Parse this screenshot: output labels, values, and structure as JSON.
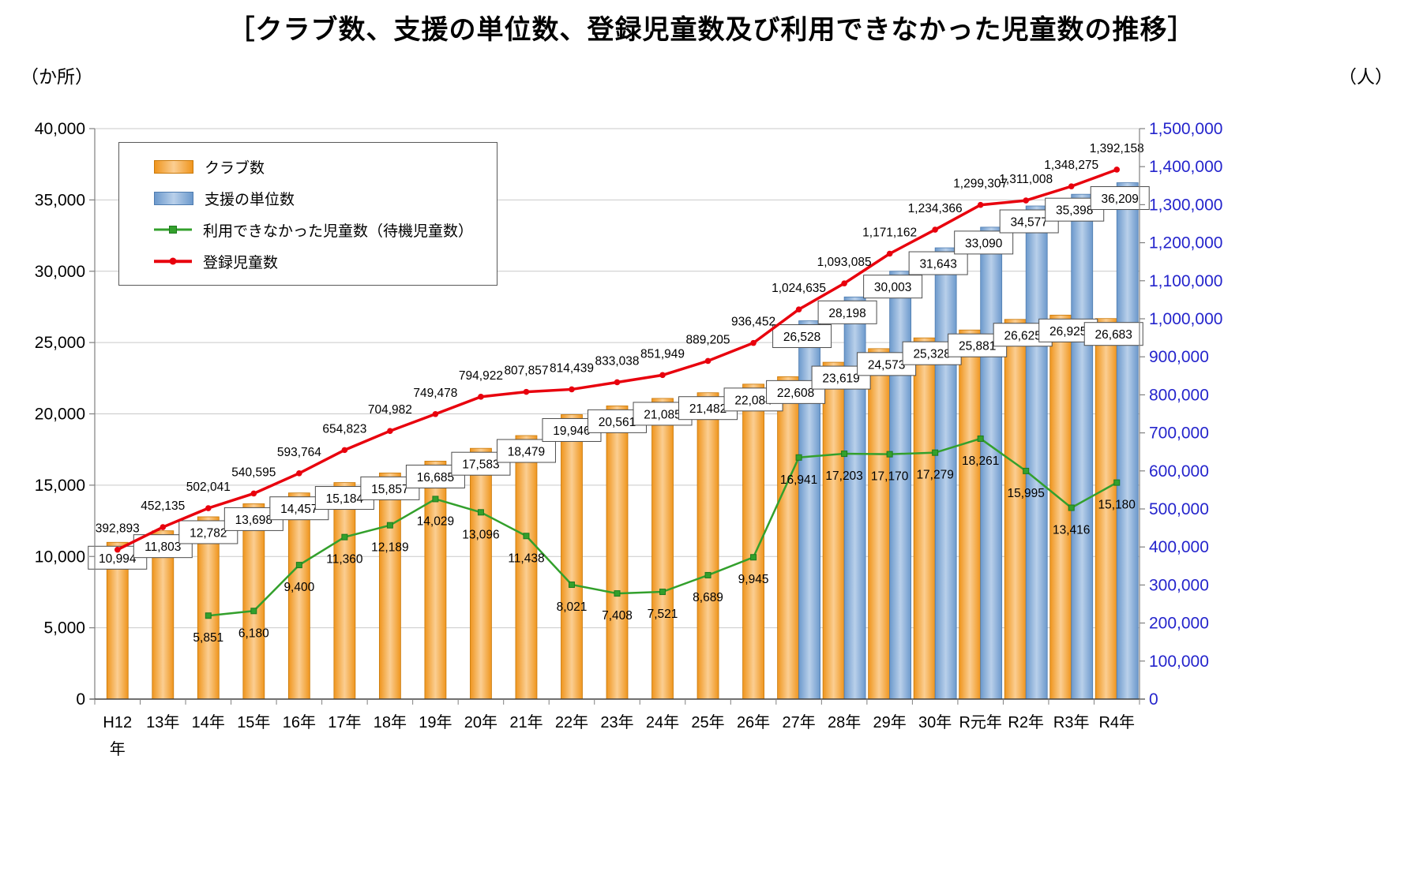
{
  "title": "［クラブ数、支援の単位数、登録児童数及び利用できなかった児童数の推移］",
  "chart_data": {
    "type": "bar",
    "title": "クラブ数、支援の単位数、登録児童数及び利用できなかった児童数の推移",
    "categories": [
      "H12年",
      "13年",
      "14年",
      "15年",
      "16年",
      "17年",
      "18年",
      "19年",
      "20年",
      "21年",
      "22年",
      "23年",
      "24年",
      "25年",
      "26年",
      "27年",
      "28年",
      "29年",
      "30年",
      "R元年",
      "R2年",
      "R3年",
      "R4年"
    ],
    "series": [
      {
        "name": "クラブ数",
        "type": "bar",
        "axis": "left",
        "color": "#f2991c",
        "values": [
          10994,
          11803,
          12782,
          13698,
          14457,
          15184,
          15857,
          16685,
          17583,
          18479,
          19946,
          20561,
          21085,
          21482,
          22084,
          22608,
          23619,
          24573,
          25328,
          25881,
          26625,
          26925,
          26683
        ]
      },
      {
        "name": "支援の単位数",
        "type": "bar",
        "axis": "left",
        "color": "#7ca6d8",
        "values": [
          null,
          null,
          null,
          null,
          null,
          null,
          null,
          null,
          null,
          null,
          null,
          null,
          null,
          null,
          null,
          26528,
          28198,
          30003,
          31643,
          33090,
          34577,
          35398,
          36209
        ]
      },
      {
        "name": "利用できなかった児童数（待機児童数）",
        "type": "line",
        "axis": "left",
        "color": "#33a02c",
        "marker": "square",
        "values": [
          null,
          null,
          5851,
          6180,
          9400,
          11360,
          12189,
          14029,
          13096,
          11438,
          8021,
          7408,
          7521,
          8689,
          9945,
          16941,
          17203,
          17170,
          17279,
          18261,
          15995,
          13416,
          15180
        ]
      },
      {
        "name": "登録児童数",
        "type": "line",
        "axis": "right",
        "color": "#e8000d",
        "marker": "circle",
        "values": [
          392893,
          452135,
          502041,
          540595,
          593764,
          654823,
          704982,
          749478,
          794922,
          807857,
          814439,
          833038,
          851949,
          889205,
          936452,
          1024635,
          1093085,
          1171162,
          1234366,
          1299307,
          1311008,
          1348275,
          1392158
        ]
      }
    ],
    "left_axis": {
      "label": "（か所）",
      "min": 0,
      "max": 40000,
      "step": 5000
    },
    "right_axis": {
      "label": "（人）",
      "min": 0,
      "max": 1500000,
      "step": 100000
    },
    "grid": true,
    "legend_position": "top-left"
  }
}
